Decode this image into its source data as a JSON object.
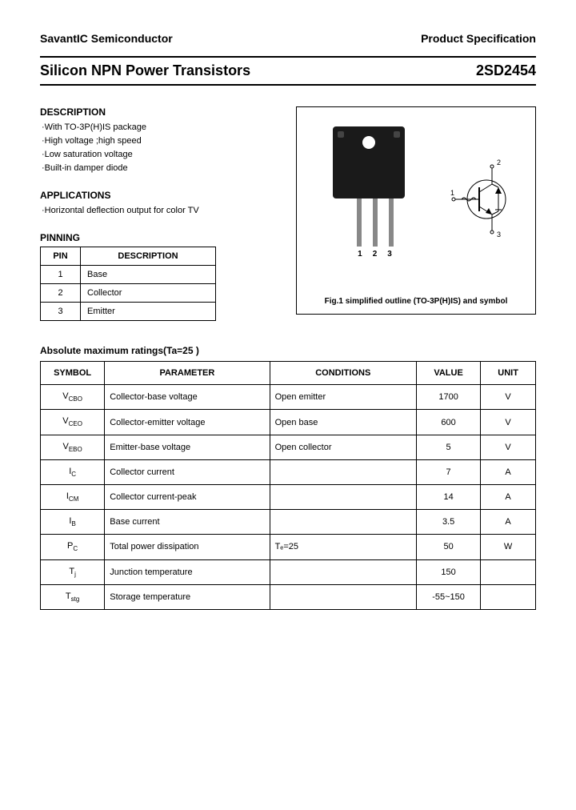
{
  "header": {
    "company": "SavantIC Semiconductor",
    "doctype": "Product Specification"
  },
  "title": {
    "left": "Silicon NPN Power Transistors",
    "right": "2SD2454"
  },
  "description": {
    "heading": "DESCRIPTION",
    "items": [
      "·With TO-3P(H)IS package",
      "·High voltage ;high speed",
      "·Low saturation voltage",
      "·Built-in damper diode"
    ]
  },
  "applications": {
    "heading": "APPLICATIONS",
    "items": [
      "·Horizontal deflection output for color TV"
    ]
  },
  "pinning": {
    "heading": "PINNING",
    "cols": [
      "PIN",
      "DESCRIPTION"
    ],
    "rows": [
      {
        "pin": "1",
        "desc": "Base"
      },
      {
        "pin": "2",
        "desc": "Collector"
      },
      {
        "pin": "3",
        "desc": "Emitter"
      }
    ]
  },
  "figure": {
    "lead_nums": [
      "1",
      "2",
      "3"
    ],
    "sym_labels": {
      "one": "1",
      "two": "2",
      "three": "3"
    },
    "caption": "Fig.1 simplified outline (TO-3P(H)IS) and symbol"
  },
  "ratings": {
    "heading": "Absolute maximum ratings(Ta=25 )",
    "cols": [
      "SYMBOL",
      "PARAMETER",
      "CONDITIONS",
      "VALUE",
      "UNIT"
    ],
    "rows": [
      {
        "sym": "V",
        "sub": "CBO",
        "param": "Collector-base voltage",
        "cond": "Open emitter",
        "val": "1700",
        "unit": "V"
      },
      {
        "sym": "V",
        "sub": "CEO",
        "param": "Collector-emitter voltage",
        "cond": "Open base",
        "val": "600",
        "unit": "V"
      },
      {
        "sym": "V",
        "sub": "EBO",
        "param": "Emitter-base voltage",
        "cond": "Open collector",
        "val": "5",
        "unit": "V"
      },
      {
        "sym": "I",
        "sub": "C",
        "param": "Collector current",
        "cond": "",
        "val": "7",
        "unit": "A"
      },
      {
        "sym": "I",
        "sub": "CM",
        "param": "Collector current-peak",
        "cond": "",
        "val": "14",
        "unit": "A"
      },
      {
        "sym": "I",
        "sub": "B",
        "param": "Base current",
        "cond": "",
        "val": "3.5",
        "unit": "A"
      },
      {
        "sym": "P",
        "sub": "C",
        "param": "Total power dissipation",
        "cond": "Tₑ=25",
        "val": "50",
        "unit": "W"
      },
      {
        "sym": "T",
        "sub": "j",
        "param": "Junction temperature",
        "cond": "",
        "val": "150",
        "unit": ""
      },
      {
        "sym": "T",
        "sub": "stg",
        "param": "Storage temperature",
        "cond": "",
        "val": "-55~150",
        "unit": ""
      }
    ]
  }
}
